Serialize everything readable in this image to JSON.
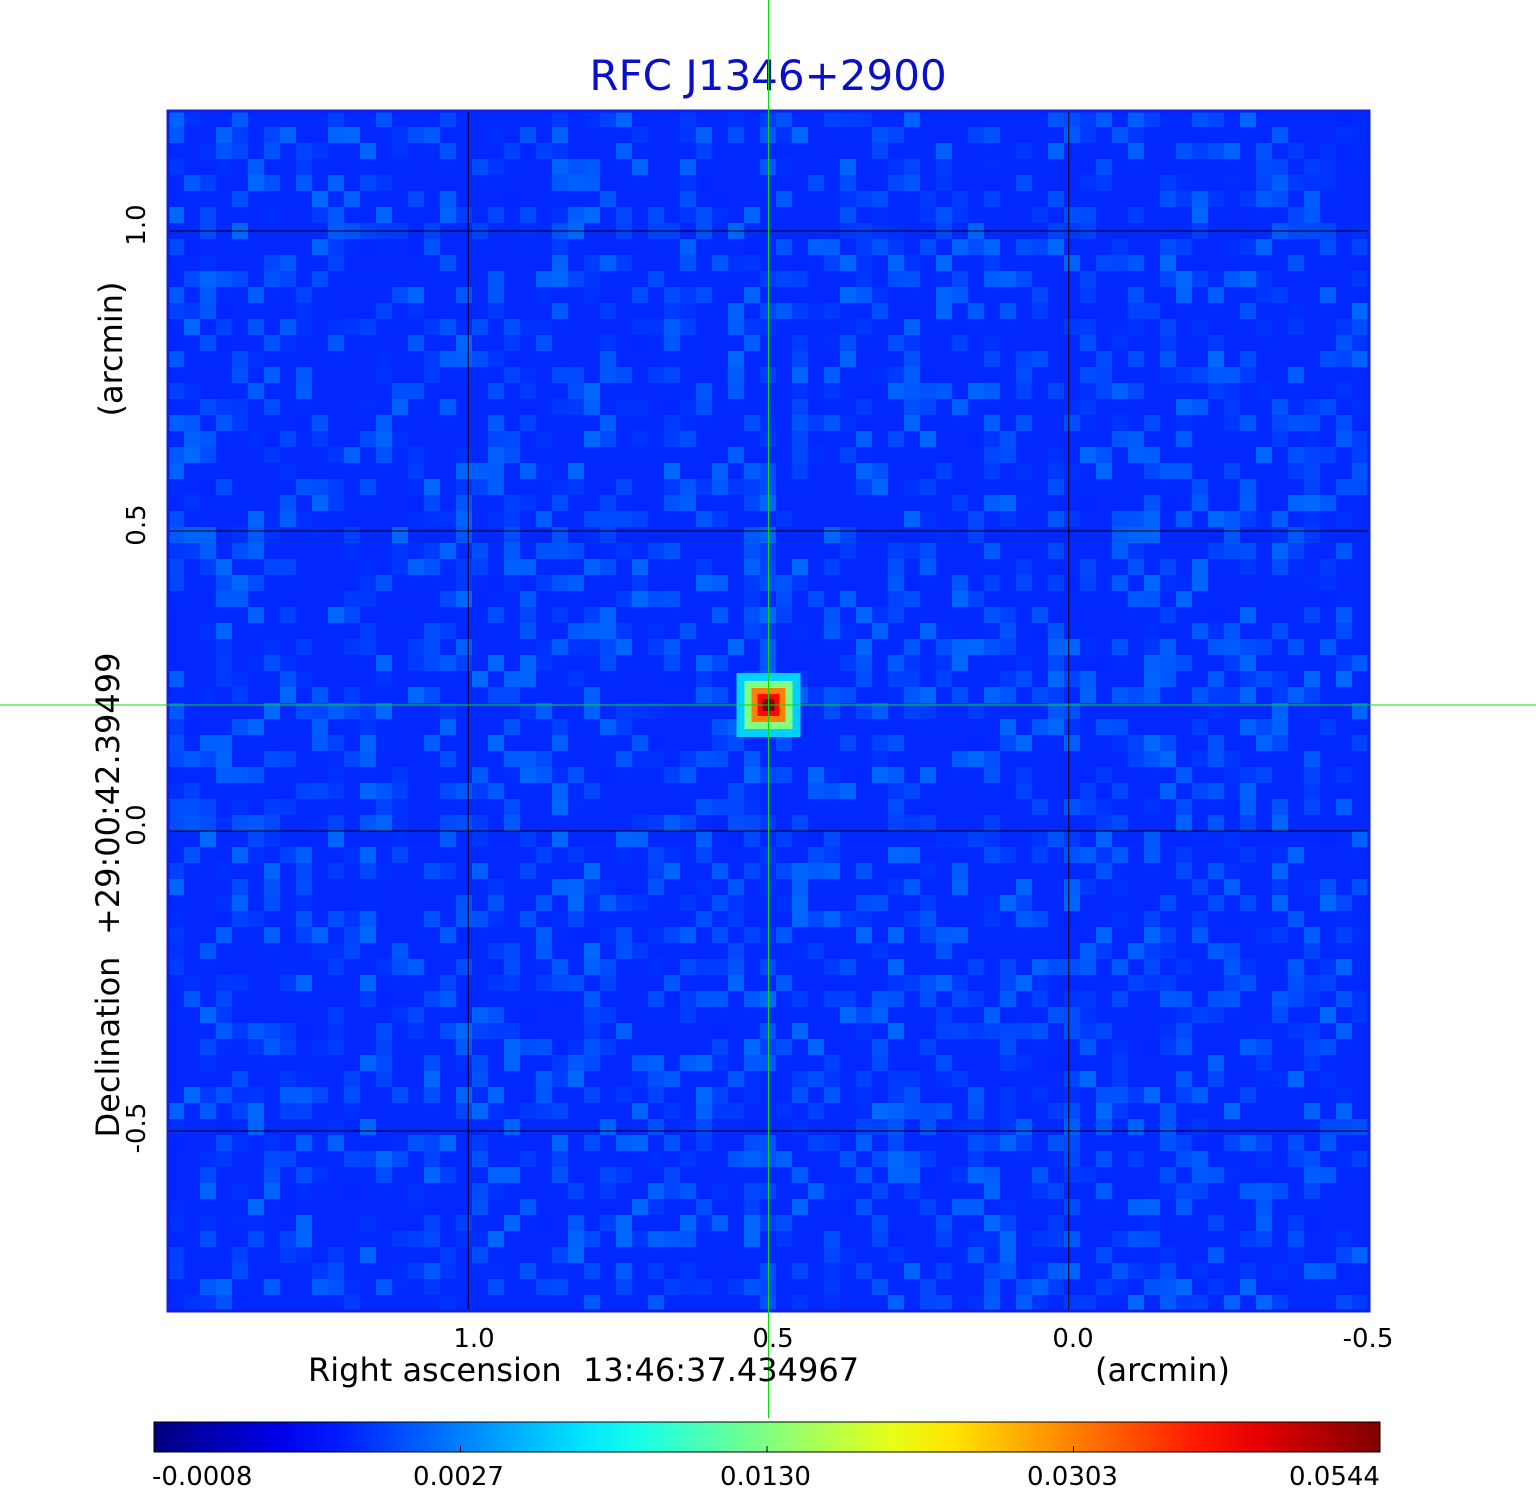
{
  "chart_data": {
    "type": "heatmap",
    "title": "RFC J1346+2900",
    "colormap": "jet",
    "xlabel": {
      "prefix": "Right ascension",
      "center": "13:46:37.434967",
      "unit": "(arcmin)"
    },
    "ylabel": {
      "prefix": "Declination",
      "center": "+29:00:42.39499",
      "unit": "(arcmin)"
    },
    "x_ticks": [
      {
        "label": "1.0",
        "value": 1.0
      },
      {
        "label": "0.5",
        "value": 0.5
      },
      {
        "label": "0.0",
        "value": 0.0
      },
      {
        "label": "-0.5",
        "value": -0.5
      }
    ],
    "y_ticks": [
      {
        "label": "1.0",
        "value": 1.0
      },
      {
        "label": "0.5",
        "value": 0.5
      },
      {
        "label": "0.0",
        "value": 0.0
      },
      {
        "label": "-0.5",
        "value": -0.5
      }
    ],
    "xlim": [
      1.5,
      -0.5
    ],
    "ylim": [
      -0.8,
      1.2
    ],
    "grid": true,
    "crosshair": {
      "x": 0.5,
      "y": 0.21,
      "color": "#00e000"
    },
    "source_peak": {
      "x": 0.5,
      "y": 0.21,
      "value": 0.0544
    },
    "background_level": 0.0015,
    "colorbar": {
      "ticks": [
        "-0.0008",
        "0.0027",
        "0.0130",
        "0.0303",
        "0.0544"
      ],
      "min": -0.0008,
      "max": 0.0544
    }
  }
}
